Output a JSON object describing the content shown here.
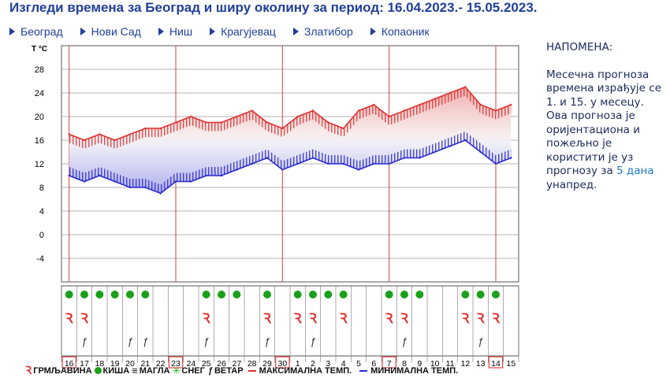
{
  "page": {
    "title": "Изгледи времена за Београд и ширу околину за период: 16.04.2023.- 15.05.2023."
  },
  "nav": {
    "items": [
      "Београд",
      "Нови Сад",
      "Ниш",
      "Крагујевац",
      "Златибор",
      "Копаоник"
    ]
  },
  "note": {
    "heading": "НАПОМЕНА:",
    "body_before": "Месечна прогноза времена израђује се 1. и 15. у месецу. Ова прогноза је оријентациона и пожељно је користити је уз прогнозу за",
    "link": "5 дана",
    "body_after": "унапред."
  },
  "legend": {
    "thunder": "ГРМЉАВИНА",
    "rain": "КИША",
    "fog": "МАГЛА",
    "snow": "СНЕГ",
    "wind": "ВЕТАР",
    "max": "МАКСИМАЛНА ТЕМП.",
    "min": "МИНИМАЛНА ТЕМП."
  },
  "colors": {
    "max_line": "#e03030",
    "min_line": "#2a2ad0",
    "rain": "#1aa01a",
    "highlight": "#e04040",
    "grid": "#888888"
  },
  "chart_data": {
    "type": "line",
    "ylabel": "T °C",
    "ylim": [
      -8,
      32
    ],
    "yticks": [
      -4,
      0,
      4,
      8,
      12,
      16,
      20,
      24,
      28
    ],
    "days": [
      "16",
      "17",
      "18",
      "19",
      "20",
      "21",
      "22",
      "23",
      "24",
      "25",
      "26",
      "27",
      "28",
      "29",
      "30",
      "1",
      "2",
      "3",
      "4",
      "5",
      "6",
      "7",
      "8",
      "9",
      "10",
      "11",
      "12",
      "13",
      "14",
      "15"
    ],
    "highlighted_days": [
      "16",
      "23",
      "30",
      "7",
      "14"
    ],
    "series": [
      {
        "name": "МАКСИМАЛНА ТЕМП.",
        "values": [
          17,
          16,
          17,
          16,
          17,
          18,
          18,
          19,
          20,
          19,
          19,
          20,
          21,
          19,
          18,
          20,
          21,
          19,
          18,
          21,
          22,
          20,
          21,
          22,
          23,
          24,
          25,
          22,
          21,
          22
        ]
      },
      {
        "name": "МИНИМАЛНА ТЕМП.",
        "values": [
          10,
          9,
          10,
          9,
          8,
          8,
          7,
          9,
          9,
          10,
          10,
          11,
          12,
          13,
          11,
          12,
          13,
          12,
          12,
          11,
          12,
          12,
          13,
          13,
          14,
          15,
          16,
          14,
          12,
          13
        ]
      }
    ],
    "rain": [
      1,
      1,
      1,
      1,
      1,
      1,
      0,
      0,
      0,
      1,
      1,
      1,
      0,
      1,
      0,
      1,
      1,
      1,
      1,
      0,
      0,
      1,
      1,
      1,
      0,
      0,
      1,
      1,
      1,
      0
    ],
    "thunder": [
      1,
      1,
      0,
      0,
      0,
      0,
      0,
      0,
      0,
      1,
      0,
      0,
      0,
      1,
      0,
      1,
      1,
      0,
      1,
      0,
      0,
      1,
      1,
      0,
      0,
      0,
      1,
      1,
      1,
      0
    ],
    "wind": [
      0,
      1,
      0,
      0,
      1,
      1,
      0,
      0,
      0,
      1,
      0,
      0,
      0,
      1,
      0,
      0,
      1,
      0,
      0,
      0,
      0,
      0,
      1,
      0,
      0,
      0,
      0,
      1,
      0,
      0
    ]
  }
}
